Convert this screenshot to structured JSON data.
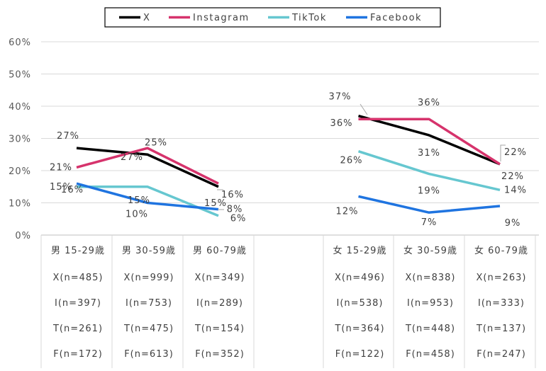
{
  "chart_data": {
    "type": "line",
    "title": "",
    "xlabel": "",
    "ylabel": "",
    "ylim": [
      0,
      60
    ],
    "yticks": [
      "0%",
      "10%",
      "20%",
      "30%",
      "40%",
      "50%",
      "60%"
    ],
    "grid": true,
    "legend_position": "top-center",
    "groups": [
      {
        "name": "male",
        "categories": [
          "男 15-29歳",
          "男 30-59歳",
          "男 60-79歳"
        ],
        "series": [
          {
            "name": "X",
            "values": [
              27,
              25,
              15
            ],
            "labels": [
              "27%",
              "25%",
              "15%"
            ]
          },
          {
            "name": "Instagram",
            "values": [
              21,
              27,
              16
            ],
            "labels": [
              "21%",
              "27%",
              "16%"
            ]
          },
          {
            "name": "TikTok",
            "values": [
              15,
              15,
              6
            ],
            "labels": [
              "15%",
              "15%",
              "6%"
            ]
          },
          {
            "name": "Facebook",
            "values": [
              16,
              10,
              8
            ],
            "labels": [
              "16%",
              "10%",
              "8%"
            ]
          }
        ],
        "sample_rows": [
          [
            "X(n=485)",
            "X(n=999)",
            "X(n=349)"
          ],
          [
            "I(n=397)",
            "I(n=753)",
            "I(n=289)"
          ],
          [
            "T(n=261)",
            "T(n=475)",
            "T(n=154)"
          ],
          [
            "F(n=172)",
            "F(n=613)",
            "F(n=352)"
          ]
        ]
      },
      {
        "name": "female",
        "categories": [
          "女 15-29歳",
          "女 30-59歳",
          "女 60-79歳"
        ],
        "series": [
          {
            "name": "X",
            "values": [
              37,
              31,
              22
            ],
            "labels": [
              "37%",
              "31%",
              "22%"
            ]
          },
          {
            "name": "Instagram",
            "values": [
              36,
              36,
              22
            ],
            "labels": [
              "36%",
              "36%",
              "22%"
            ]
          },
          {
            "name": "TikTok",
            "values": [
              26,
              19,
              14
            ],
            "labels": [
              "26%",
              "19%",
              "14%"
            ]
          },
          {
            "name": "Facebook",
            "values": [
              12,
              7,
              9
            ],
            "labels": [
              "12%",
              "7%",
              "9%"
            ]
          }
        ],
        "sample_rows": [
          [
            "X(n=496)",
            "X(n=838)",
            "X(n=263)"
          ],
          [
            "I(n=538)",
            "I(n=953)",
            "I(n=333)"
          ],
          [
            "T(n=364)",
            "T(n=448)",
            "T(n=137)"
          ],
          [
            "F(n=122)",
            "F(n=458)",
            "F(n=247)"
          ]
        ]
      }
    ],
    "legend": [
      {
        "name": "X",
        "color": "#000000"
      },
      {
        "name": "Instagram",
        "color": "#d6336c"
      },
      {
        "name": "TikTok",
        "color": "#66c7d0"
      },
      {
        "name": "Facebook",
        "color": "#1f74e0"
      }
    ]
  }
}
